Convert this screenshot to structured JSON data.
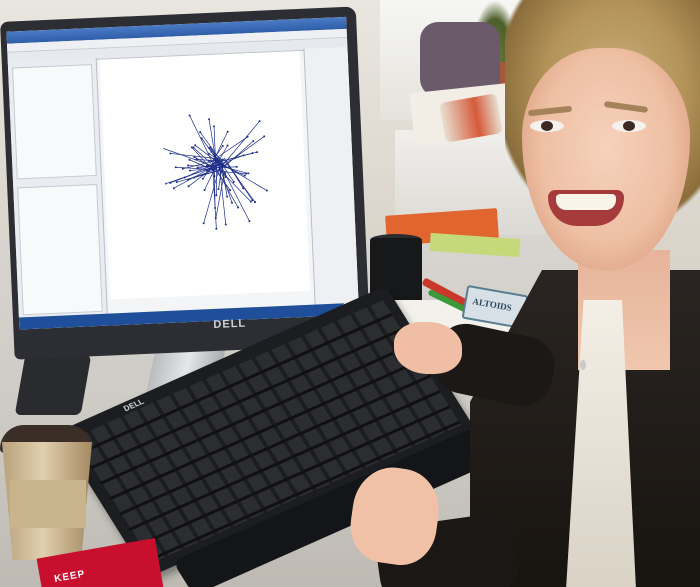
{
  "image": {
    "type": "photo",
    "scene": "office-desk"
  },
  "monitor": {
    "brand_label": "DELL",
    "app_window": {
      "title_text": "",
      "status_text": ""
    }
  },
  "keyboard": {
    "brand_label": "DELL"
  },
  "desk_items": {
    "tin_label": "ALTOIDS",
    "card_text": "KEEP"
  },
  "colors": {
    "graph_edges": "#1e2d8a",
    "screen_bg": "#f4f5f7",
    "taskbar": "#1f4f9a",
    "book": "#e0652e",
    "cardigan": "#17130f"
  }
}
